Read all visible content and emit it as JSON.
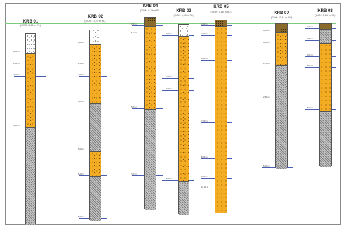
{
  "boreholes": [
    {
      "id": "KRB 01",
      "gok": "(GOK: 0,44 m RL)",
      "layers": [
        {
          "type": "fill"
        },
        {
          "type": "sand"
        },
        {
          "type": "clay"
        }
      ],
      "depth_labels": [
        "0,80 m",
        "1,50 m",
        "3,00 m",
        "5,20 m"
      ]
    },
    {
      "id": "KRB 02",
      "gok": "(GOK: -0,27 m RL)",
      "layers": [
        {
          "type": "fill"
        },
        {
          "type": "sand"
        },
        {
          "type": "clay"
        },
        {
          "type": "sand"
        },
        {
          "type": "clay"
        }
      ],
      "depth_labels": [
        "0,80 m",
        "1,50 m",
        "2,00 m",
        "3,70 m",
        "5,10 m",
        "6,00 m",
        "8,00 m"
      ]
    },
    {
      "id": "KRB 04",
      "gok": "(GOK: 0,29 m RL)",
      "layers": [
        {
          "type": "topsoil"
        },
        {
          "type": "sand"
        },
        {
          "type": "clay"
        }
      ],
      "depth_labels": [
        "0,50 m",
        "2,70 m",
        "5,00 m",
        "7,00 m"
      ]
    },
    {
      "id": "KRB 03",
      "gok": "(GOK: 0,00 m RL)",
      "layers": [
        {
          "type": "fill"
        },
        {
          "type": "sand"
        },
        {
          "type": "clay"
        }
      ],
      "depth_labels": [
        "0,50 m",
        "2,20 m",
        "7,00 m",
        "8,00 m"
      ]
    },
    {
      "id": "KRB 05",
      "gok": "(GOK: 0,16 m RL)",
      "layers": [
        {
          "type": "topsoil"
        },
        {
          "type": "sand"
        }
      ],
      "depth_labels": [
        "0,50 m",
        "2,10 m",
        "4,50 m",
        "7,00 m",
        "8,00 m",
        "9,00 m",
        "10,00 m"
      ]
    },
    {
      "id": "KRB 07",
      "gok": "(GOK: -0,24 m RL)",
      "layers": [
        {
          "type": "topsoil"
        },
        {
          "type": "sand"
        },
        {
          "type": "clay"
        }
      ],
      "depth_labels": [
        "0,20 m",
        "0,80 m",
        "1,70 m",
        "2,80 m",
        "6,00 m"
      ]
    },
    {
      "id": "KRB 08",
      "gok": "(GOK: 0,04 m RL)",
      "layers": [
        {
          "type": "topsoil"
        },
        {
          "type": "clay"
        },
        {
          "type": "sand"
        },
        {
          "type": "clay"
        }
      ],
      "depth_labels": [
        "0,30 m",
        "0,80 m",
        "1,00 m",
        "2,80 m",
        "5,00 m"
      ]
    }
  ]
}
